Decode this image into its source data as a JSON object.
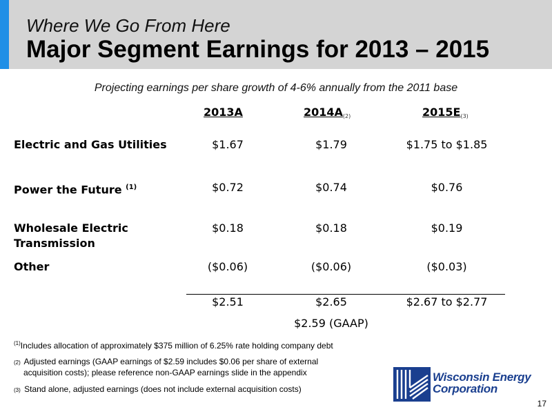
{
  "header": {
    "kicker": "Where We Go From Here",
    "title": "Major Segment Earnings for 2013 – 2015"
  },
  "subtitle": "Projecting earnings per share growth of 4-6% annually from the 2011 base",
  "columns": [
    {
      "label": "2013A",
      "note": ""
    },
    {
      "label": "2014A",
      "note": "(2)"
    },
    {
      "label": "2015E",
      "note": "(3)"
    }
  ],
  "rows": [
    {
      "label": "Electric and Gas Utilities",
      "note": "",
      "values": [
        "$1.67",
        "$1.79",
        "$1.75 to $1.85"
      ]
    },
    {
      "label": "Power the Future",
      "note": "(1)",
      "values": [
        "$0.72",
        "$0.74",
        "$0.76"
      ]
    },
    {
      "label_line1": "Wholesale Electric",
      "label_line2": "Transmission",
      "values": [
        "$0.18",
        "$0.18",
        "$0.19"
      ]
    },
    {
      "label": "Other",
      "values": [
        "($0.06)",
        "($0.06)",
        "($0.03)"
      ]
    }
  ],
  "totals": [
    "$2.51",
    "$2.65",
    "$2.67 to $2.77"
  ],
  "gaap_note": "$2.59 (GAAP)",
  "footnotes": [
    {
      "marker": "(1)",
      "text": "Includes allocation of approximately $375 million of 6.25% rate holding company debt"
    },
    {
      "marker": "(2)",
      "line1": "Adjusted earnings (GAAP earnings of $2.59 includes $0.06 per share of external",
      "line2": "acquisition costs); please reference non-GAAP earnings slide in the appendix"
    },
    {
      "marker": "(3)",
      "text": "Stand alone, adjusted earnings (does not include external acquisition costs)"
    }
  ],
  "logo": {
    "line1": "Wisconsin Energy",
    "line2": "Corporation",
    "color": "#1a3f8f"
  },
  "page_number": "17",
  "colors": {
    "header_bg": "#d4d4d4",
    "accent": "#1f8fe6"
  }
}
